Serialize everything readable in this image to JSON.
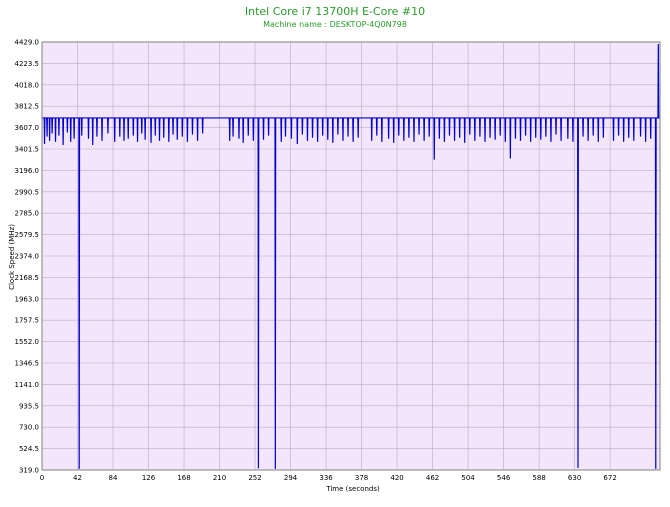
{
  "colors": {
    "title": "#2a9a2a",
    "plot_bg": "#f4e6fa",
    "grid": "#c0a8c8",
    "line": "#0000cc",
    "axis_text": "#000000"
  },
  "chart_data": {
    "type": "line",
    "title": "Intel Core i7 13700H E-Core #10",
    "subtitle": "Machine name : DESKTOP-4Q0N798",
    "xlabel": "Time (seconds)",
    "ylabel": "Clock Speed (MHz)",
    "xlim": [
      0,
      731
    ],
    "ylim": [
      319.0,
      4429.0
    ],
    "x_ticks": [
      "0",
      "42",
      "84",
      "126",
      "168",
      "210",
      "252",
      "294",
      "336",
      "378",
      "420",
      "462",
      "504",
      "546",
      "588",
      "630",
      "672"
    ],
    "x_tick_values": [
      0,
      42,
      84,
      126,
      168,
      210,
      252,
      294,
      336,
      378,
      420,
      462,
      504,
      546,
      588,
      630,
      672
    ],
    "y_ticks": [
      "319.0",
      "524.5",
      "730.0",
      "935.5",
      "1141.0",
      "1346.5",
      "1552.0",
      "1757.5",
      "1963.0",
      "2168.5",
      "2374.0",
      "2579.5",
      "2785.0",
      "2990.5",
      "3196.0",
      "3401.5",
      "3607.0",
      "3812.5",
      "4018.0",
      "4223.5",
      "4429.0"
    ],
    "grid": true,
    "series": [
      {
        "baseline_mhz": 3700,
        "dips": [
          {
            "t": 3,
            "v": 3450
          },
          {
            "t": 6,
            "v": 3520
          },
          {
            "t": 9,
            "v": 3480
          },
          {
            "t": 12,
            "v": 3550
          },
          {
            "t": 16,
            "v": 3470
          },
          {
            "t": 20,
            "v": 3530
          },
          {
            "t": 25,
            "v": 3440
          },
          {
            "t": 30,
            "v": 3560
          },
          {
            "t": 34,
            "v": 3470
          },
          {
            "t": 38,
            "v": 3500
          },
          {
            "t": 44,
            "v": 330
          },
          {
            "t": 47,
            "v": 3530
          },
          {
            "t": 55,
            "v": 3500
          },
          {
            "t": 60,
            "v": 3440
          },
          {
            "t": 65,
            "v": 3520
          },
          {
            "t": 71,
            "v": 3480
          },
          {
            "t": 78,
            "v": 3550
          },
          {
            "t": 86,
            "v": 3470
          },
          {
            "t": 92,
            "v": 3520
          },
          {
            "t": 97,
            "v": 3480
          },
          {
            "t": 102,
            "v": 3500
          },
          {
            "t": 108,
            "v": 3530
          },
          {
            "t": 113,
            "v": 3470
          },
          {
            "t": 118,
            "v": 3550
          },
          {
            "t": 122,
            "v": 3490
          },
          {
            "t": 129,
            "v": 3460
          },
          {
            "t": 134,
            "v": 3530
          },
          {
            "t": 139,
            "v": 3480
          },
          {
            "t": 144,
            "v": 3510
          },
          {
            "t": 150,
            "v": 3470
          },
          {
            "t": 155,
            "v": 3540
          },
          {
            "t": 160,
            "v": 3490
          },
          {
            "t": 166,
            "v": 3520
          },
          {
            "t": 172,
            "v": 3470
          },
          {
            "t": 178,
            "v": 3540
          },
          {
            "t": 184,
            "v": 3480
          },
          {
            "t": 190,
            "v": 3550
          },
          {
            "t": 222,
            "v": 3480
          },
          {
            "t": 226,
            "v": 3520
          },
          {
            "t": 233,
            "v": 3500
          },
          {
            "t": 238,
            "v": 3460
          },
          {
            "t": 244,
            "v": 3530
          },
          {
            "t": 250,
            "v": 3480
          },
          {
            "t": 256,
            "v": 335
          },
          {
            "t": 262,
            "v": 3490
          },
          {
            "t": 268,
            "v": 3530
          },
          {
            "t": 276,
            "v": 330
          },
          {
            "t": 283,
            "v": 3470
          },
          {
            "t": 288,
            "v": 3520
          },
          {
            "t": 295,
            "v": 3500
          },
          {
            "t": 302,
            "v": 3450
          },
          {
            "t": 308,
            "v": 3540
          },
          {
            "t": 314,
            "v": 3480
          },
          {
            "t": 320,
            "v": 3510
          },
          {
            "t": 326,
            "v": 3470
          },
          {
            "t": 332,
            "v": 3530
          },
          {
            "t": 338,
            "v": 3490
          },
          {
            "t": 344,
            "v": 3460
          },
          {
            "t": 350,
            "v": 3540
          },
          {
            "t": 356,
            "v": 3480
          },
          {
            "t": 362,
            "v": 3520
          },
          {
            "t": 368,
            "v": 3470
          },
          {
            "t": 374,
            "v": 3510
          },
          {
            "t": 390,
            "v": 3480
          },
          {
            "t": 396,
            "v": 3530
          },
          {
            "t": 402,
            "v": 3470
          },
          {
            "t": 410,
            "v": 3500
          },
          {
            "t": 416,
            "v": 3460
          },
          {
            "t": 422,
            "v": 3530
          },
          {
            "t": 428,
            "v": 3480
          },
          {
            "t": 434,
            "v": 3510
          },
          {
            "t": 440,
            "v": 3470
          },
          {
            "t": 446,
            "v": 3540
          },
          {
            "t": 452,
            "v": 3480
          },
          {
            "t": 458,
            "v": 3520
          },
          {
            "t": 464,
            "v": 3300
          },
          {
            "t": 470,
            "v": 3500
          },
          {
            "t": 476,
            "v": 3470
          },
          {
            "t": 482,
            "v": 3530
          },
          {
            "t": 488,
            "v": 3480
          },
          {
            "t": 494,
            "v": 3510
          },
          {
            "t": 500,
            "v": 3460
          },
          {
            "t": 506,
            "v": 3540
          },
          {
            "t": 512,
            "v": 3480
          },
          {
            "t": 518,
            "v": 3520
          },
          {
            "t": 524,
            "v": 3470
          },
          {
            "t": 530,
            "v": 3510
          },
          {
            "t": 536,
            "v": 3490
          },
          {
            "t": 542,
            "v": 3530
          },
          {
            "t": 548,
            "v": 3470
          },
          {
            "t": 554,
            "v": 3310
          },
          {
            "t": 560,
            "v": 3500
          },
          {
            "t": 566,
            "v": 3480
          },
          {
            "t": 572,
            "v": 3530
          },
          {
            "t": 578,
            "v": 3470
          },
          {
            "t": 584,
            "v": 3510
          },
          {
            "t": 590,
            "v": 3490
          },
          {
            "t": 596,
            "v": 3520
          },
          {
            "t": 602,
            "v": 3470
          },
          {
            "t": 608,
            "v": 3540
          },
          {
            "t": 614,
            "v": 3480
          },
          {
            "t": 622,
            "v": 3500
          },
          {
            "t": 628,
            "v": 3470
          },
          {
            "t": 634,
            "v": 340
          },
          {
            "t": 640,
            "v": 3520
          },
          {
            "t": 646,
            "v": 3480
          },
          {
            "t": 652,
            "v": 3530
          },
          {
            "t": 658,
            "v": 3470
          },
          {
            "t": 664,
            "v": 3510
          },
          {
            "t": 676,
            "v": 3480
          },
          {
            "t": 682,
            "v": 3530
          },
          {
            "t": 688,
            "v": 3470
          },
          {
            "t": 694,
            "v": 3510
          },
          {
            "t": 700,
            "v": 3480
          },
          {
            "t": 708,
            "v": 3520
          },
          {
            "t": 714,
            "v": 3470
          },
          {
            "t": 720,
            "v": 3500
          },
          {
            "t": 726,
            "v": 330
          },
          {
            "t": 729,
            "v": 4410
          }
        ],
        "plateaus": [
          {
            "from": 192,
            "to": 220,
            "v": 3700
          },
          {
            "from": 376,
            "to": 388,
            "v": 3700
          },
          {
            "from": 666,
            "to": 674,
            "v": 3700
          }
        ]
      }
    ]
  }
}
